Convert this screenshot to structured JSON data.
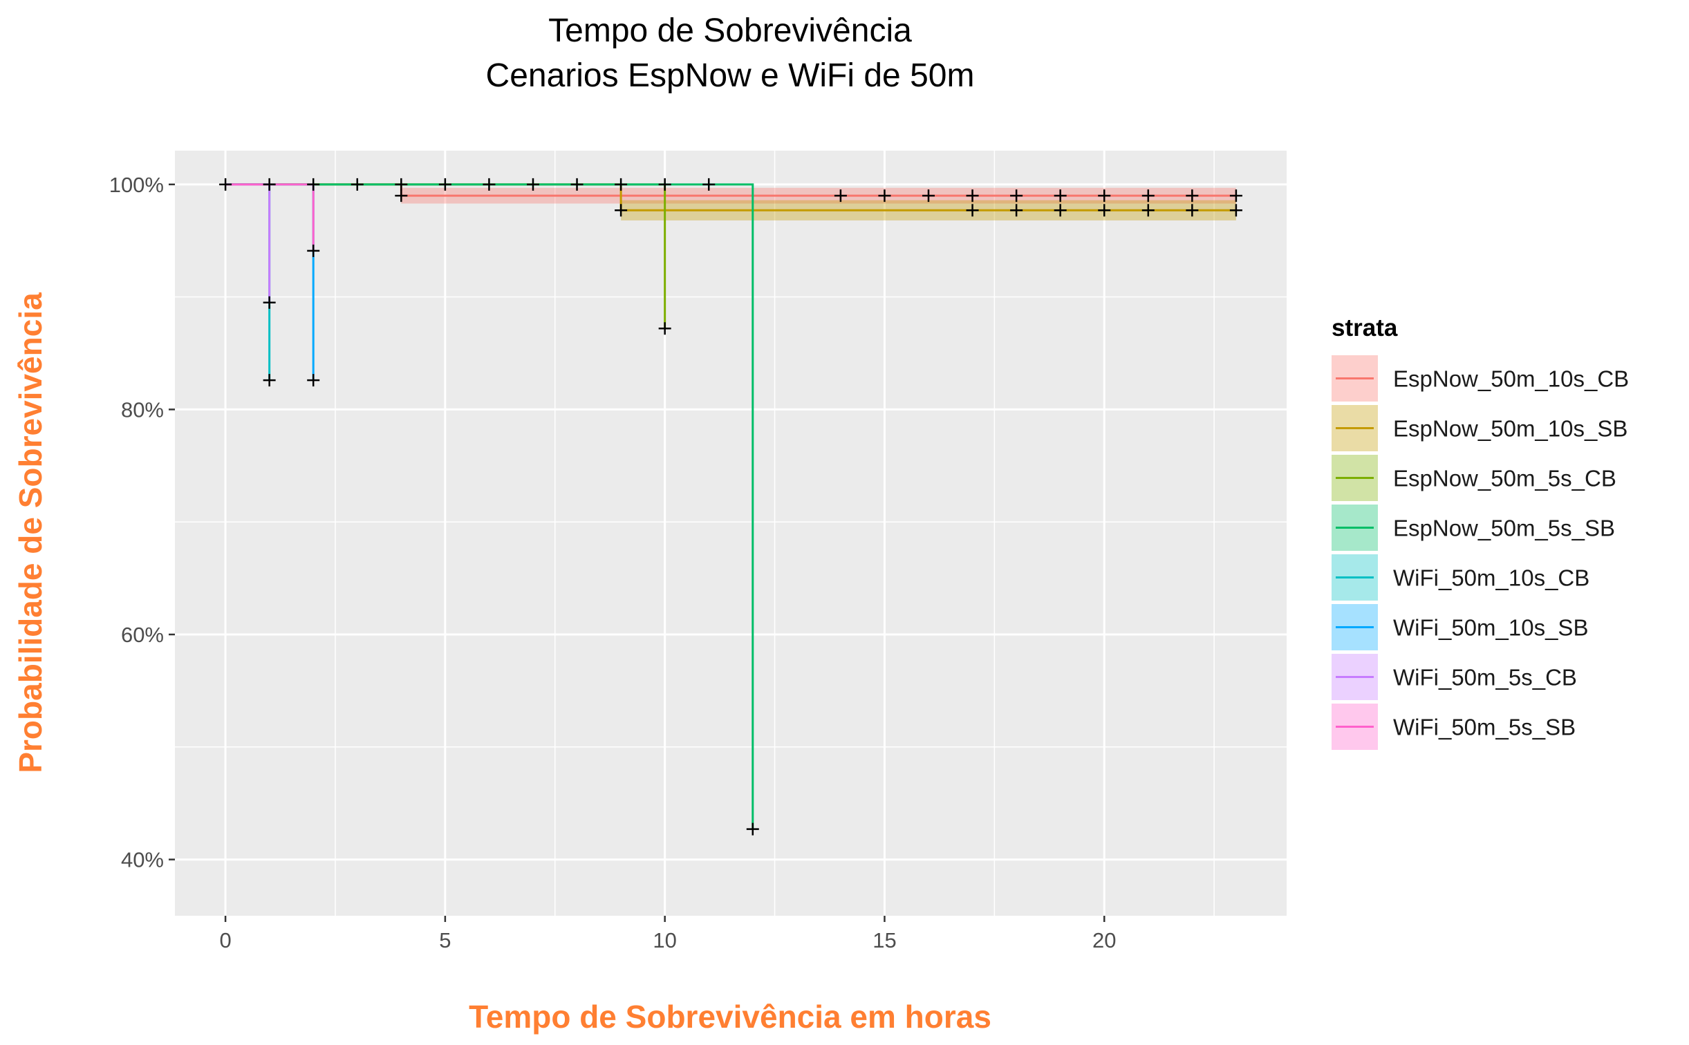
{
  "chart_data": {
    "type": "line",
    "subtype": "kaplan-meier survival step plot with confidence bands and censor marks",
    "title": "Tempo de Sobrevivência",
    "subtitle": "Cenarios EspNow e WiFi de 50m",
    "xlabel": "Tempo de Sobrevivência em horas",
    "ylabel": "Probabilidade de Sobrevivência",
    "xlim": [
      -1.15,
      24.15
    ],
    "ylim": [
      0.35,
      1.03
    ],
    "x_ticks": [
      0,
      5,
      10,
      15,
      20
    ],
    "x_tick_labels": [
      "0",
      "5",
      "10",
      "15",
      "20"
    ],
    "y_ticks": [
      0.4,
      0.6,
      0.8,
      1.0
    ],
    "y_tick_labels": [
      "40%",
      "60%",
      "80%",
      "100%"
    ],
    "grid": true,
    "legend_title": "strata",
    "legend_position": "right",
    "series": [
      {
        "name": "EspNow_50m_10s_CB",
        "color": "#F8766D",
        "step_points": [
          [
            0,
            1.0
          ],
          [
            4,
            1.0
          ],
          [
            4,
            0.99
          ],
          [
            23,
            0.99
          ]
        ],
        "band": [
          [
            4,
            0.983,
            0.997
          ],
          [
            23,
            0.983,
            0.997
          ]
        ],
        "censor_marks": [
          [
            4,
            1.0
          ],
          [
            4,
            0.99
          ],
          [
            14,
            0.99
          ],
          [
            15,
            0.99
          ],
          [
            16,
            0.99
          ],
          [
            17,
            0.99
          ],
          [
            18,
            0.99
          ],
          [
            19,
            0.99
          ],
          [
            20,
            0.99
          ],
          [
            21,
            0.99
          ],
          [
            22,
            0.99
          ],
          [
            23,
            0.99
          ]
        ]
      },
      {
        "name": "EspNow_50m_10s_SB",
        "color": "#C49A00",
        "step_points": [
          [
            0,
            1.0
          ],
          [
            9,
            1.0
          ],
          [
            9,
            0.977
          ],
          [
            23,
            0.977
          ]
        ],
        "band": [
          [
            9,
            0.968,
            0.986
          ],
          [
            23,
            0.968,
            0.986
          ]
        ],
        "censor_marks": [
          [
            9,
            1.0
          ],
          [
            9,
            0.977
          ],
          [
            17,
            0.977
          ],
          [
            18,
            0.977
          ],
          [
            19,
            0.977
          ],
          [
            20,
            0.977
          ],
          [
            21,
            0.977
          ],
          [
            22,
            0.977
          ],
          [
            23,
            0.977
          ]
        ]
      },
      {
        "name": "EspNow_50m_5s_CB",
        "color": "#7CAE00",
        "step_points": [
          [
            0,
            1.0
          ],
          [
            10,
            1.0
          ],
          [
            10,
            0.872
          ]
        ],
        "band": [],
        "censor_marks": [
          [
            10,
            1.0
          ],
          [
            10,
            0.872
          ]
        ]
      },
      {
        "name": "EspNow_50m_5s_SB",
        "color": "#00BE67",
        "step_points": [
          [
            0,
            1.0
          ],
          [
            12,
            1.0
          ],
          [
            12,
            0.427
          ]
        ],
        "band": [],
        "censor_marks": [
          [
            3,
            1.0
          ],
          [
            5,
            1.0
          ],
          [
            6,
            1.0
          ],
          [
            7,
            1.0
          ],
          [
            8,
            1.0
          ],
          [
            11,
            1.0
          ],
          [
            12,
            0.427
          ]
        ]
      },
      {
        "name": "WiFi_50m_10s_CB",
        "color": "#00BFC4",
        "step_points": [
          [
            0,
            1.0
          ],
          [
            1,
            1.0
          ],
          [
            1,
            0.826
          ]
        ],
        "band": [],
        "censor_marks": [
          [
            1,
            0.895
          ],
          [
            1,
            0.826
          ]
        ]
      },
      {
        "name": "WiFi_50m_10s_SB",
        "color": "#00A9FF",
        "step_points": [
          [
            0,
            1.0
          ],
          [
            2,
            1.0
          ],
          [
            2,
            0.826
          ]
        ],
        "band": [],
        "censor_marks": [
          [
            2,
            0.941
          ],
          [
            2,
            0.826
          ]
        ]
      },
      {
        "name": "WiFi_50m_5s_CB",
        "color": "#C77CFF",
        "step_points": [
          [
            0,
            1.0
          ],
          [
            1,
            1.0
          ],
          [
            1,
            0.895
          ]
        ],
        "band": [],
        "censor_marks": [
          [
            1,
            1.0
          ]
        ]
      },
      {
        "name": "WiFi_50m_5s_SB",
        "color": "#FF61CC",
        "step_points": [
          [
            0,
            1.0
          ],
          [
            2,
            1.0
          ],
          [
            2,
            0.941
          ]
        ],
        "band": [],
        "censor_marks": [
          [
            0,
            1.0
          ],
          [
            2,
            1.0
          ]
        ]
      }
    ],
    "colors": {
      "panel_background": "#EBEBEB",
      "grid": "#FFFFFF",
      "axis_title": "#FF7F32",
      "censor_mark": "#000000"
    }
  }
}
